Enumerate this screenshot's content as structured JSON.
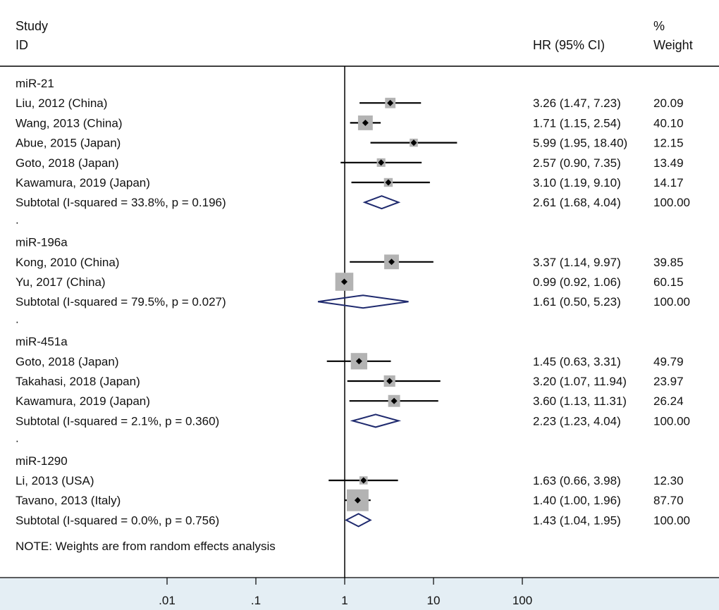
{
  "header": {
    "study_line1": "Study",
    "study_line2": "ID",
    "effect_label": "HR (95% CI)",
    "weight_line1": "%",
    "weight_line2": "Weight"
  },
  "footnote": "NOTE: Weights are from random effects analysis",
  "colors": {
    "marker_box": "#b3b3b3",
    "diamond": "#1f2a6e",
    "axis_band": "#e4eef4",
    "line": "#000000"
  },
  "chart_data": {
    "type": "forest",
    "measure": "HR",
    "xscale": "log",
    "xlim": [
      0.01,
      100
    ],
    "null_line": 1,
    "ticks": [
      {
        "value": 0.01,
        "label": ".01"
      },
      {
        "value": 0.1,
        "label": ".1"
      },
      {
        "value": 1,
        "label": "1"
      },
      {
        "value": 10,
        "label": "10"
      },
      {
        "value": 100,
        "label": "100"
      }
    ],
    "groups": [
      {
        "name": "miR-21",
        "studies": [
          {
            "label": "Liu, 2012 (China)",
            "hr": 3.26,
            "lo": 1.47,
            "hi": 7.23,
            "ci_text": "3.26 (1.47, 7.23)",
            "weight": "20.09"
          },
          {
            "label": "Wang, 2013 (China)",
            "hr": 1.71,
            "lo": 1.15,
            "hi": 2.54,
            "ci_text": "1.71 (1.15, 2.54)",
            "weight": "40.10"
          },
          {
            "label": "Abue, 2015 (Japan)",
            "hr": 5.99,
            "lo": 1.95,
            "hi": 18.4,
            "ci_text": "5.99 (1.95, 18.40)",
            "weight": "12.15"
          },
          {
            "label": "Goto, 2018 (Japan)",
            "hr": 2.57,
            "lo": 0.9,
            "hi": 7.35,
            "ci_text": "2.57 (0.90, 7.35)",
            "weight": "13.49"
          },
          {
            "label": "Kawamura, 2019 (Japan)",
            "hr": 3.1,
            "lo": 1.19,
            "hi": 9.1,
            "ci_text": "3.10 (1.19, 9.10)",
            "weight": "14.17"
          }
        ],
        "subtotal": {
          "label": "Subtotal  (I-squared = 33.8%, p = 0.196)",
          "hr": 2.61,
          "lo": 1.68,
          "hi": 4.04,
          "ci_text": "2.61 (1.68, 4.04)",
          "weight": "100.00"
        },
        "separator": "."
      },
      {
        "name": "miR-196a",
        "studies": [
          {
            "label": "Kong, 2010 (China)",
            "hr": 3.37,
            "lo": 1.14,
            "hi": 9.97,
            "ci_text": "3.37 (1.14, 9.97)",
            "weight": "39.85"
          },
          {
            "label": "Yu, 2017 (China)",
            "hr": 0.99,
            "lo": 0.92,
            "hi": 1.06,
            "ci_text": "0.99 (0.92, 1.06)",
            "weight": "60.15"
          }
        ],
        "subtotal": {
          "label": "Subtotal  (I-squared = 79.5%, p = 0.027)",
          "hr": 1.61,
          "lo": 0.5,
          "hi": 5.23,
          "ci_text": "1.61 (0.50, 5.23)",
          "weight": "100.00"
        },
        "separator": "."
      },
      {
        "name": "miR-451a",
        "studies": [
          {
            "label": "Goto, 2018 (Japan)",
            "hr": 1.45,
            "lo": 0.63,
            "hi": 3.31,
            "ci_text": "1.45 (0.63, 3.31)",
            "weight": "49.79"
          },
          {
            "label": "Takahasi, 2018 (Japan)",
            "hr": 3.2,
            "lo": 1.07,
            "hi": 11.94,
            "ci_text": "3.20 (1.07, 11.94)",
            "weight": "23.97"
          },
          {
            "label": "Kawamura, 2019 (Japan)",
            "hr": 3.6,
            "lo": 1.13,
            "hi": 11.31,
            "ci_text": "3.60 (1.13, 11.31)",
            "weight": "26.24"
          }
        ],
        "subtotal": {
          "label": "Subtotal  (I-squared = 2.1%, p = 0.360)",
          "hr": 2.23,
          "lo": 1.23,
          "hi": 4.04,
          "ci_text": "2.23 (1.23, 4.04)",
          "weight": "100.00"
        },
        "separator": "."
      },
      {
        "name": "miR-1290",
        "studies": [
          {
            "label": "Li, 2013 (USA)",
            "hr": 1.63,
            "lo": 0.66,
            "hi": 3.98,
            "ci_text": "1.63 (0.66, 3.98)",
            "weight": "12.30"
          },
          {
            "label": "Tavano, 2013 (Italy)",
            "hr": 1.4,
            "lo": 1.0,
            "hi": 1.96,
            "ci_text": "1.40 (1.00, 1.96)",
            "weight": "87.70"
          }
        ],
        "subtotal": {
          "label": "Subtotal  (I-squared = 0.0%, p = 0.756)",
          "hr": 1.43,
          "lo": 1.04,
          "hi": 1.95,
          "ci_text": "1.43 (1.04, 1.95)",
          "weight": "100.00"
        },
        "separator": ""
      }
    ]
  }
}
